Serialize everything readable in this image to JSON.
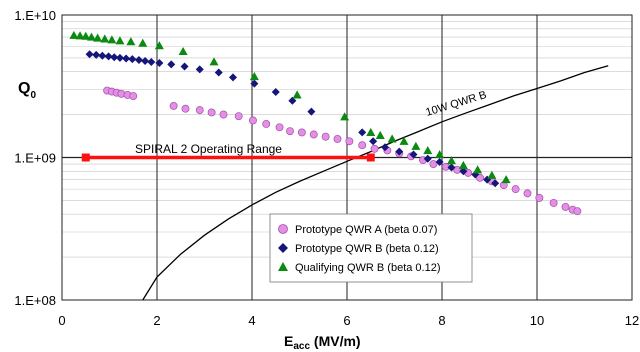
{
  "chart_data": {
    "type": "scatter",
    "xlabel_main": "E",
    "xlabel_sub": "acc",
    "xlabel_rest": " (MV/m)",
    "ylabel_main": "Q",
    "ylabel_sub": "0",
    "x_ticks": [
      "0",
      "2",
      "4",
      "6",
      "8",
      "10",
      "12"
    ],
    "y_ticks": [
      "1.E+08",
      "1.E+09",
      "1.E+10"
    ],
    "xlim": [
      0,
      12
    ],
    "ylim": [
      100000000,
      10000000000
    ],
    "y_scale": "log",
    "grid": true,
    "legend_position": "lower-center",
    "series": [
      {
        "name": "Prototype QWR A (beta 0.07)",
        "marker": "circle",
        "color": "#e48ee6",
        "edge": "#a050a8",
        "x": [
          0.95,
          1.05,
          1.15,
          1.25,
          1.38,
          1.5,
          2.35,
          2.6,
          2.9,
          3.15,
          3.4,
          3.72,
          4.02,
          4.3,
          4.58,
          4.8,
          5.05,
          5.3,
          5.55,
          5.8,
          6.05,
          6.32,
          6.58,
          6.85,
          7.1,
          7.35,
          7.6,
          7.82,
          8.08,
          8.32,
          8.55,
          8.8,
          9.05,
          9.3,
          9.55,
          9.8,
          10.05,
          10.35,
          10.6,
          10.75,
          10.85
        ],
        "y": [
          2950000000.0,
          2900000000.0,
          2850000000.0,
          2800000000.0,
          2750000000.0,
          2700000000.0,
          2300000000.0,
          2200000000.0,
          2150000000.0,
          2070000000.0,
          2000000000.0,
          1950000000.0,
          1820000000.0,
          1720000000.0,
          1630000000.0,
          1530000000.0,
          1500000000.0,
          1450000000.0,
          1400000000.0,
          1350000000.0,
          1300000000.0,
          1220000000.0,
          1150000000.0,
          1120000000.0,
          1070000000.0,
          1020000000.0,
          960000000.0,
          900000000.0,
          860000000.0,
          820000000.0,
          780000000.0,
          720000000.0,
          680000000.0,
          640000000.0,
          600000000.0,
          560000000.0,
          520000000.0,
          480000000.0,
          450000000.0,
          430000000.0,
          420000000.0
        ]
      },
      {
        "name": "Prototype QWR B (beta 0.12)",
        "marker": "diamond",
        "color": "#15157a",
        "edge": "#0a0a55",
        "x": [
          0.58,
          0.72,
          0.85,
          0.98,
          1.1,
          1.22,
          1.35,
          1.48,
          1.62,
          1.75,
          1.88,
          2.05,
          2.3,
          2.58,
          2.9,
          3.3,
          3.6,
          4.05,
          4.5,
          4.85,
          5.25,
          6.32,
          6.55,
          6.8,
          7.1,
          7.4,
          7.7,
          7.95,
          8.2,
          8.45,
          8.7,
          8.95,
          9.12
        ],
        "y": [
          5300000000.0,
          5250000000.0,
          5180000000.0,
          5120000000.0,
          5050000000.0,
          5000000000.0,
          4950000000.0,
          4900000000.0,
          4830000000.0,
          4760000000.0,
          4680000000.0,
          4600000000.0,
          4500000000.0,
          4350000000.0,
          4150000000.0,
          3950000000.0,
          3650000000.0,
          3300000000.0,
          2880000000.0,
          2500000000.0,
          2100000000.0,
          1500000000.0,
          1300000000.0,
          1180000000.0,
          1100000000.0,
          1050000000.0,
          980000000.0,
          930000000.0,
          850000000.0,
          800000000.0,
          760000000.0,
          700000000.0,
          660000000.0
        ]
      },
      {
        "name": "Qualifying QWR B (beta 0.12)",
        "marker": "triangle",
        "color": "#0a8a10",
        "edge": "#066010",
        "x": [
          0.25,
          0.38,
          0.5,
          0.62,
          0.75,
          0.9,
          1.05,
          1.22,
          1.45,
          1.7,
          2.05,
          2.55,
          3.2,
          4.05,
          4.95,
          5.95,
          6.5,
          6.7,
          6.95,
          7.2,
          7.45,
          7.7,
          7.95,
          8.2,
          8.45,
          8.75,
          9.05,
          9.35
        ],
        "y": [
          7200000000.0,
          7150000000.0,
          7100000000.0,
          7000000000.0,
          6900000000.0,
          6800000000.0,
          6700000000.0,
          6600000000.0,
          6500000000.0,
          6350000000.0,
          6100000000.0,
          5550000000.0,
          4700000000.0,
          3700000000.0,
          2750000000.0,
          1930000000.0,
          1500000000.0,
          1430000000.0,
          1350000000.0,
          1300000000.0,
          1200000000.0,
          1120000000.0,
          1050000000.0,
          950000000.0,
          880000000.0,
          820000000.0,
          750000000.0,
          700000000.0
        ]
      }
    ],
    "curve": {
      "label": "10W QWR B",
      "x": [
        1.7,
        2,
        2.5,
        3,
        3.5,
        4,
        4.5,
        5,
        5.5,
        6,
        6.5,
        7,
        7.5,
        8,
        8.5,
        9,
        9.5,
        10,
        10.5,
        11,
        11.5
      ],
      "y": [
        98000000.0,
        145000000.0,
        210000000.0,
        285000000.0,
        370000000.0,
        465000000.0,
        570000000.0,
        680000000.0,
        800000000.0,
        940000000.0,
        1100000000.0,
        1300000000.0,
        1520000000.0,
        1780000000.0,
        2050000000.0,
        2350000000.0,
        2700000000.0,
        3050000000.0,
        3450000000.0,
        3950000000.0,
        4400000000.0
      ]
    },
    "operating_range": {
      "label": "SPIRAL 2 Operating Range",
      "x_start": 0.5,
      "x_end": 6.5,
      "y": 1000000000
    }
  }
}
